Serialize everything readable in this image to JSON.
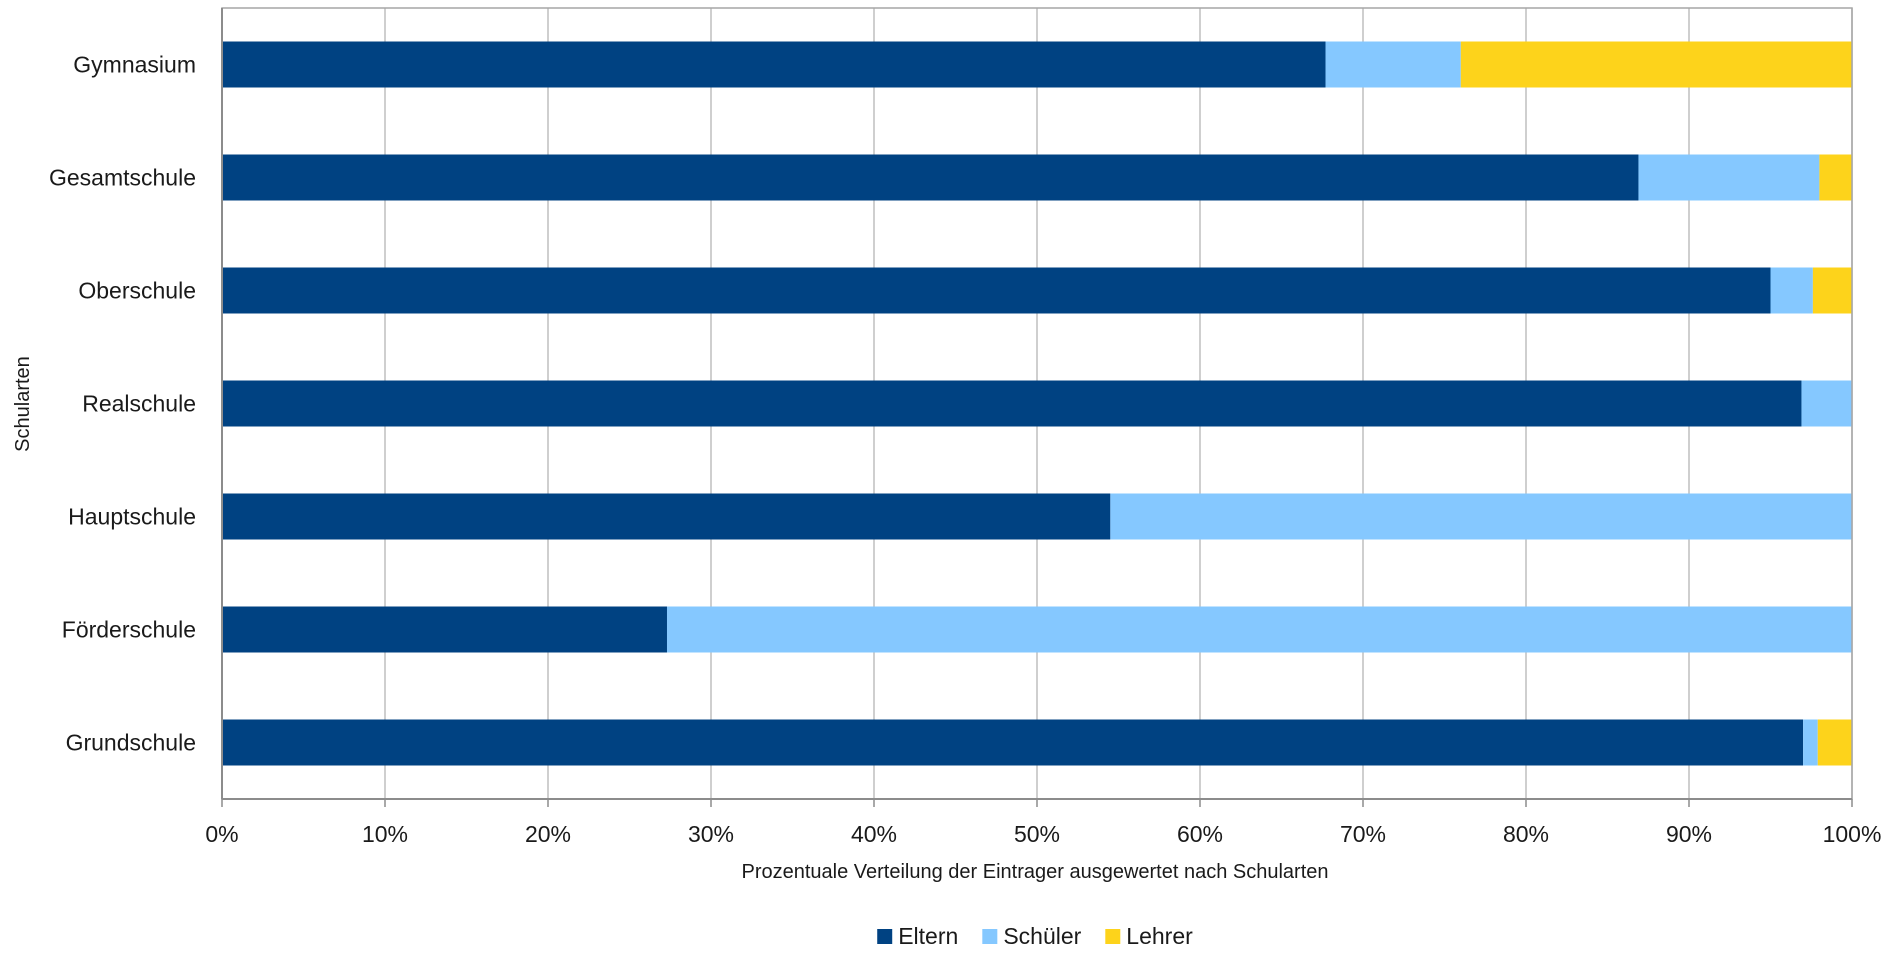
{
  "chart_data": {
    "type": "bar",
    "orientation": "horizontal",
    "stacked": "percent",
    "categories": [
      "Gymnasium",
      "Gesamtschule",
      "Oberschule",
      "Realschule",
      "Hauptschule",
      "Förderschule",
      "Grundschule"
    ],
    "series": [
      {
        "name": "Eltern",
        "color": "#004282",
        "values": [
          67.7,
          86.9,
          95.0,
          96.9,
          54.5,
          27.3,
          97.0
        ]
      },
      {
        "name": "Schüler",
        "color": "#85C8FF",
        "values": [
          8.3,
          11.1,
          2.6,
          3.1,
          45.5,
          72.7,
          0.9
        ]
      },
      {
        "name": "Lehrer",
        "color": "#FDD31B",
        "values": [
          24.0,
          2.0,
          2.4,
          0.0,
          0.0,
          0.0,
          2.1
        ]
      }
    ],
    "x_ticks": [
      "0%",
      "10%",
      "20%",
      "30%",
      "40%",
      "50%",
      "60%",
      "70%",
      "80%",
      "90%",
      "100%"
    ],
    "xlim": [
      0,
      100
    ],
    "xlabel": "Prozentuale Verteilung der Eintrager ausgewertet nach Schularten",
    "ylabel": "Schularten",
    "grid": true,
    "legend": "bottom"
  }
}
